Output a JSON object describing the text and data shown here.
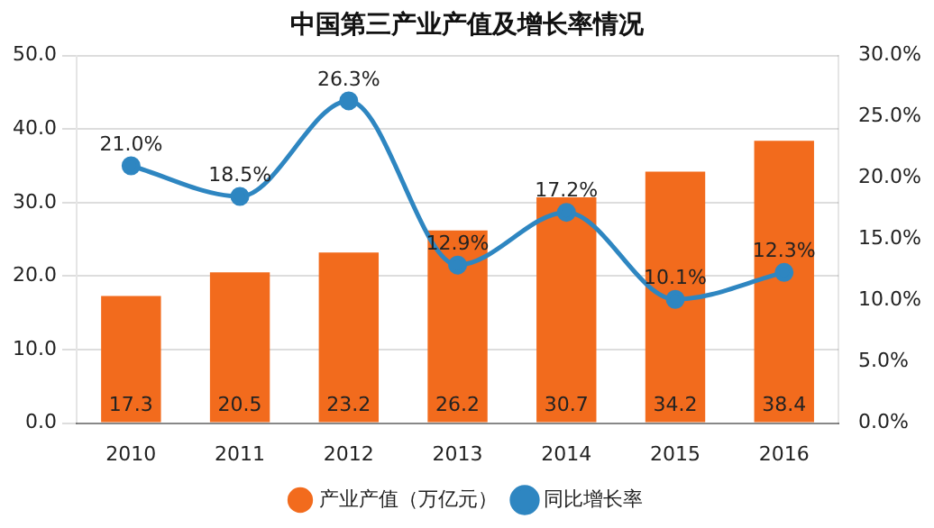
{
  "chart_data": {
    "type": "bar",
    "title": "中国第三产业产值及增长率情况",
    "categories": [
      "2010",
      "2011",
      "2012",
      "2013",
      "2014",
      "2015",
      "2016"
    ],
    "series": [
      {
        "name": "产业产值（万亿元）",
        "color": "#f26b1d",
        "values": [
          17.3,
          20.5,
          23.2,
          26.2,
          30.7,
          34.2,
          38.4
        ],
        "value_labels": [
          "17.3",
          "20.5",
          "23.2",
          "26.2",
          "30.7",
          "34.2",
          "38.4"
        ]
      },
      {
        "name": "同比增长率",
        "type": "line",
        "axis": "y2",
        "color": "#2e86c1",
        "values": [
          21.0,
          18.5,
          26.3,
          12.9,
          17.2,
          10.1,
          12.3
        ],
        "value_labels": [
          "21.0%",
          "18.5%",
          "26.3%",
          "12.9%",
          "17.2%",
          "10.1%",
          "12.3%"
        ]
      }
    ],
    "ylim": [
      0,
      50
    ],
    "yticks": [
      {
        "value": 0,
        "label": "0.0"
      },
      {
        "value": 10,
        "label": "10.0"
      },
      {
        "value": 20,
        "label": "20.0"
      },
      {
        "value": 30,
        "label": "30.0"
      },
      {
        "value": 40,
        "label": "40.0"
      },
      {
        "value": 50,
        "label": "50.0"
      }
    ],
    "y2lim": [
      0,
      30
    ],
    "y2ticks": [
      {
        "value": 0,
        "label": "0.0%"
      },
      {
        "value": 5,
        "label": "5.0%"
      },
      {
        "value": 10,
        "label": "10.0%"
      },
      {
        "value": 15,
        "label": "15.0%"
      },
      {
        "value": 20,
        "label": "20.0%"
      },
      {
        "value": 25,
        "label": "25.0%"
      },
      {
        "value": 30,
        "label": "30.0%"
      }
    ],
    "grid": "y",
    "legend": "bottom",
    "marker": "circle",
    "line_style": "solid"
  }
}
